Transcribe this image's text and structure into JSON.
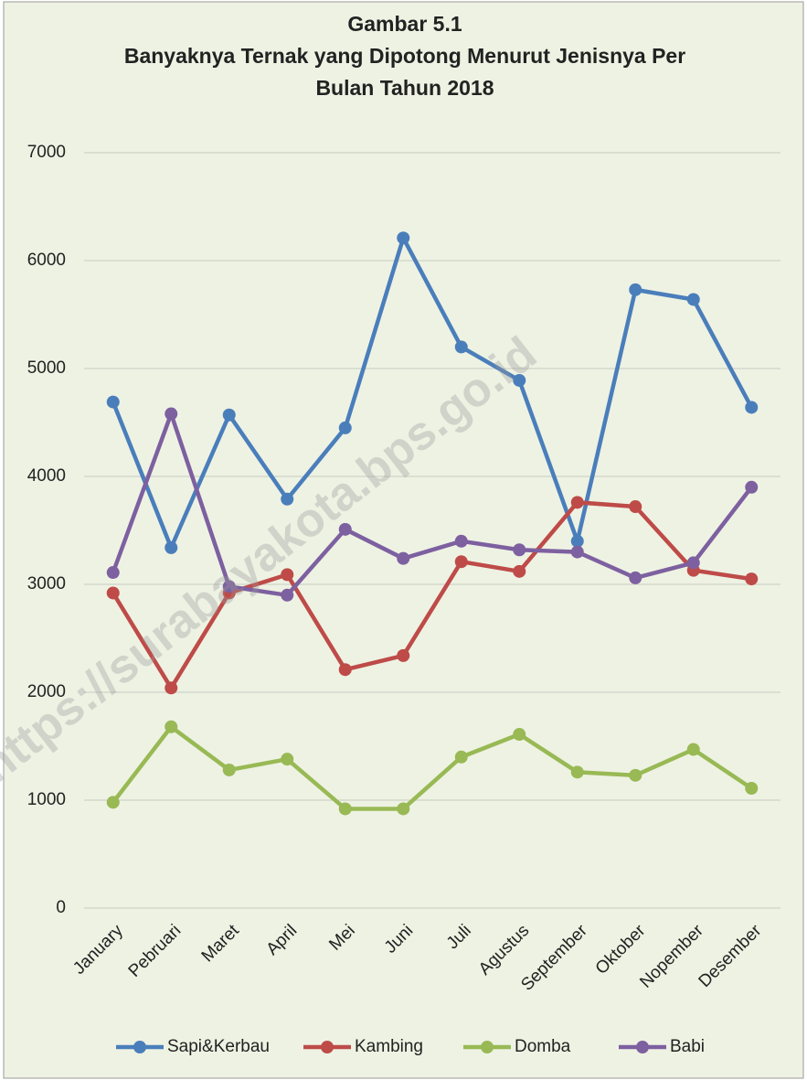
{
  "chart_data": {
    "type": "line",
    "title": [
      "Gambar 5.1",
      "Banyaknya Ternak yang Dipotong Menurut Jenisnya Per",
      "Bulan Tahun 2018"
    ],
    "watermark": "https://surabayakota.bps.go.id",
    "categories": [
      "January",
      "Pebruari",
      "Maret",
      "April",
      "Mei",
      "Juni",
      "Juli",
      "Agustus",
      "September",
      "Oktober",
      "Nopember",
      "Desember"
    ],
    "series": [
      {
        "name": "Sapi&Kerbau",
        "color": "#4a7ebb",
        "values": [
          4690,
          3340,
          4570,
          3790,
          4450,
          6210,
          5200,
          4890,
          3400,
          5730,
          5640,
          4640
        ]
      },
      {
        "name": "Kambing",
        "color": "#be4b48",
        "values": [
          2920,
          2040,
          2920,
          3090,
          2210,
          2340,
          3210,
          3120,
          3760,
          3720,
          3130,
          3050
        ]
      },
      {
        "name": "Domba",
        "color": "#98b954",
        "values": [
          980,
          1680,
          1280,
          1380,
          920,
          920,
          1400,
          1610,
          1260,
          1230,
          1470,
          1110
        ]
      },
      {
        "name": "Babi",
        "color": "#7d60a0",
        "values": [
          3110,
          4580,
          2980,
          2900,
          3510,
          3240,
          3400,
          3320,
          3300,
          3060,
          3200,
          3900
        ]
      }
    ],
    "ylim": [
      0,
      7000
    ],
    "yticks": [
      0,
      1000,
      2000,
      3000,
      4000,
      5000,
      6000,
      7000
    ],
    "grid": true,
    "legend": "bottom"
  }
}
